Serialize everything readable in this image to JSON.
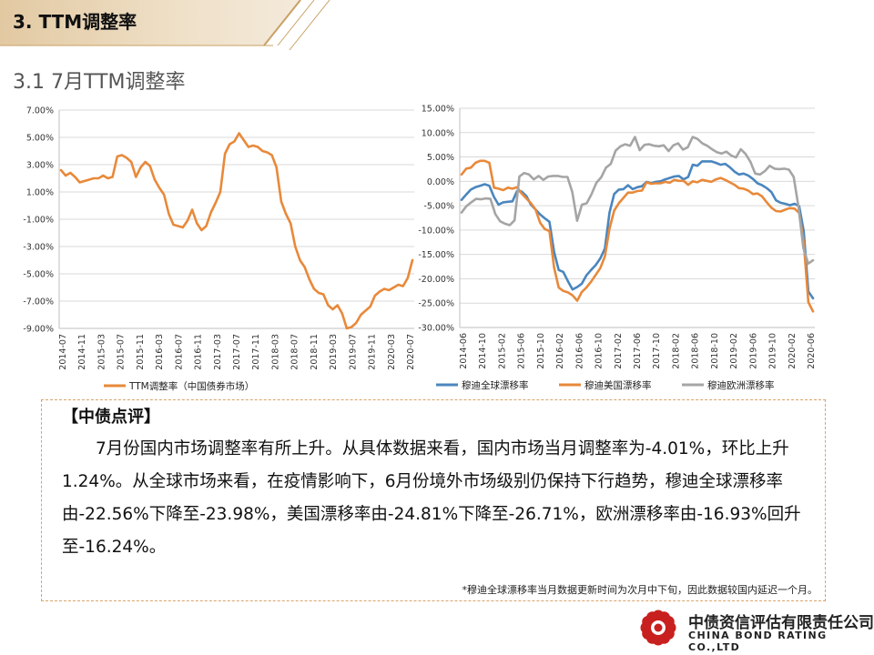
{
  "header": {
    "section_title": "3. TTM调整率",
    "subsection_title": "3.1 7月TTM调整率"
  },
  "chart_data": [
    {
      "type": "line",
      "title": "",
      "ylim": [
        -9,
        7
      ],
      "y_ticks": [
        7,
        5,
        3,
        1,
        -1,
        -3,
        -5,
        -7,
        -9
      ],
      "y_tick_labels": [
        "7.00%",
        "5.00%",
        "3.00%",
        "1.00%",
        "-1.00%",
        "-3.00%",
        "-5.00%",
        "-7.00%",
        "-9.00%"
      ],
      "x_tick_labels": [
        "2014-07",
        "2014-11",
        "2015-03",
        "2015-07",
        "2015-11",
        "2016-03",
        "2016-07",
        "2016-11",
        "2017-03",
        "2017-07",
        "2017-11",
        "2018-03",
        "2018-07",
        "2018-11",
        "2019-03",
        "2019-07",
        "2019-11",
        "2020-03",
        "2020-07"
      ],
      "series": [
        {
          "name": "TTM调整率（中国债券市场）",
          "color": "#E8893A",
          "values": [
            2.6,
            2.2,
            2.4,
            2.1,
            1.7,
            1.8,
            1.9,
            2.0,
            2.0,
            2.2,
            2.0,
            2.1,
            3.6,
            3.7,
            3.5,
            3.2,
            2.1,
            2.8,
            3.2,
            2.9,
            1.9,
            1.3,
            0.8,
            -0.6,
            -1.4,
            -1.5,
            -1.6,
            -1.1,
            -0.3,
            -1.3,
            -1.8,
            -1.5,
            -0.5,
            0.2,
            1.0,
            3.8,
            4.5,
            4.7,
            5.3,
            4.8,
            4.3,
            4.4,
            4.3,
            4.0,
            3.9,
            3.7,
            2.8,
            0.3,
            -0.6,
            -1.3,
            -3.0,
            -4.0,
            -4.5,
            -5.4,
            -6.1,
            -6.4,
            -6.5,
            -7.3,
            -7.6,
            -7.3,
            -7.9,
            -9.0,
            -8.9,
            -8.6,
            -8.0,
            -7.7,
            -7.4,
            -6.6,
            -6.3,
            -6.1,
            -6.2,
            -6.0,
            -5.8,
            -5.9,
            -5.3,
            -4.0
          ]
        }
      ]
    },
    {
      "type": "line",
      "title": "",
      "ylim": [
        -30,
        15
      ],
      "y_ticks": [
        15,
        10,
        5,
        0,
        -5,
        -10,
        -15,
        -20,
        -25,
        -30
      ],
      "y_tick_labels": [
        "15.00%",
        "10.00%",
        "5.00%",
        "0.00%",
        "-5.00%",
        "-10.00%",
        "-15.00%",
        "-20.00%",
        "-25.00%",
        "-30.00%"
      ],
      "x_tick_labels": [
        "2014-06",
        "2014-10",
        "2015-02",
        "2015-06",
        "2015-10",
        "2016-02",
        "2016-06",
        "2016-10",
        "2017-02",
        "2017-06",
        "2017-10",
        "2018-02",
        "2018-06",
        "2018-10",
        "2019-02",
        "2019-06",
        "2019-10",
        "2020-02",
        "2020-06"
      ],
      "series": [
        {
          "name": "穆迪全球漂移率",
          "color": "#4A86BE",
          "values": [
            -3.8,
            -2.7,
            -1.7,
            -1.2,
            -0.9,
            -0.6,
            -0.9,
            -3.2,
            -4.8,
            -4.3,
            -4.2,
            -4.1,
            -2.0,
            -2.1,
            -3.0,
            -4.8,
            -5.8,
            -6.8,
            -7.6,
            -8.3,
            -14.5,
            -18.2,
            -18.6,
            -20.5,
            -22.2,
            -21.7,
            -21.0,
            -19.3,
            -18.2,
            -17.2,
            -15.8,
            -13.8,
            -6.4,
            -2.6,
            -1.7,
            -1.6,
            -0.8,
            -1.6,
            -1.2,
            -1.0,
            -0.1,
            -0.4,
            -0.1,
            0.0,
            0.4,
            0.7,
            1.0,
            1.1,
            0.4,
            0.9,
            3.4,
            3.2,
            4.1,
            4.1,
            4.1,
            3.8,
            3.4,
            3.6,
            2.9,
            2.0,
            1.4,
            1.6,
            1.2,
            0.5,
            -0.4,
            -0.8,
            -1.4,
            -2.2,
            -3.9,
            -4.4,
            -4.6,
            -4.9,
            -4.6,
            -5.1,
            -10.2,
            -22.6,
            -24.0
          ]
        },
        {
          "name": "穆迪美国漂移率",
          "color": "#E8893A",
          "values": [
            1.4,
            2.6,
            2.8,
            3.8,
            4.2,
            4.2,
            3.8,
            -1.3,
            -1.5,
            -1.8,
            -1.3,
            -1.5,
            -1.2,
            -2.5,
            -3.5,
            -4.5,
            -5.8,
            -8.5,
            -9.8,
            -10.2,
            -17.7,
            -21.8,
            -22.5,
            -22.8,
            -23.4,
            -24.5,
            -22.7,
            -21.8,
            -20.6,
            -19.2,
            -17.8,
            -15.4,
            -9.7,
            -6.0,
            -4.5,
            -3.4,
            -2.3,
            -2.3,
            -2.0,
            -1.9,
            -0.2,
            -0.5,
            -0.4,
            -0.4,
            -0.1,
            -0.3,
            0.3,
            0.1,
            0.1,
            -0.7,
            0.0,
            -0.2,
            0.3,
            0.1,
            -0.1,
            0.4,
            0.7,
            0.3,
            -0.2,
            -0.7,
            -1.4,
            -1.5,
            -1.9,
            -2.6,
            -2.5,
            -3.1,
            -4.3,
            -5.4,
            -6.1,
            -6.2,
            -5.8,
            -5.5,
            -5.6,
            -6.5,
            -12.5,
            -24.8,
            -26.7
          ]
        },
        {
          "name": "穆迪欧洲漂移率",
          "color": "#A5A5A5",
          "values": [
            -6.4,
            -5.1,
            -4.3,
            -3.6,
            -3.7,
            -3.5,
            -3.6,
            -6.7,
            -8.2,
            -8.7,
            -9.0,
            -8.0,
            1.0,
            1.7,
            1.4,
            0.4,
            1.1,
            0.3,
            1.0,
            1.1,
            1.1,
            0.9,
            0.9,
            -2.2,
            -8.1,
            -4.8,
            -4.5,
            -2.6,
            -0.3,
            0.8,
            2.8,
            3.6,
            6.3,
            7.2,
            7.6,
            7.3,
            9.1,
            6.4,
            7.5,
            7.6,
            7.3,
            7.2,
            7.4,
            6.2,
            7.4,
            7.8,
            6.5,
            7.0,
            9.1,
            8.7,
            7.8,
            7.3,
            6.6,
            6.0,
            5.7,
            6.1,
            5.3,
            4.9,
            6.6,
            5.6,
            4.0,
            1.6,
            1.4,
            2.1,
            3.2,
            2.6,
            2.5,
            2.6,
            2.4,
            0.9,
            -5.3,
            -13.7,
            -16.9,
            -16.2
          ]
        }
      ]
    }
  ],
  "comment": {
    "title": "【中债点评】",
    "body": "7月份国内市场调整率有所上升。从具体数据来看，国内市场当月调整率为-4.01%，环比上升1.24%。从全球市场来看，在疫情影响下，6月份境外市场级别仍保持下行趋势，穆迪全球漂移率由-22.56%下降至-23.98%，美国漂移率由-24.81%下降至-26.71%，欧洲漂移率由-16.93%回升至-16.24%。",
    "footnote": "*穆迪全球漂移率当月数据更新时间为次月中下旬，因此数据较国内延迟一个月。"
  },
  "branding": {
    "company_cn": "中债资信评估有限责任公司",
    "company_en": "CHINA BOND RATING CO.,LTD",
    "logo_color": "#C8201E"
  }
}
